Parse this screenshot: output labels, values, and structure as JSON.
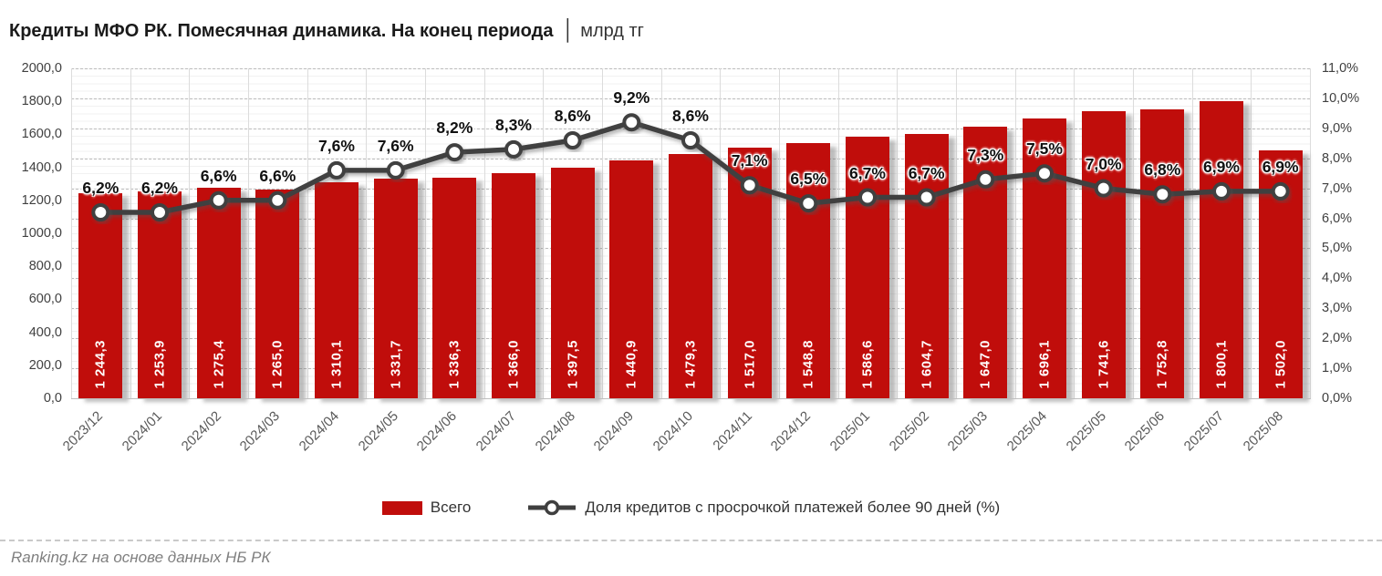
{
  "title": {
    "main": "Кредиты МФО РК. Помесячная динамика. На конец периода",
    "separator": "│",
    "unit": "млрд тг"
  },
  "chart_data": {
    "type": "combo-bar-line",
    "categories": [
      "2023/12",
      "2024/01",
      "2024/02",
      "2024/03",
      "2024/04",
      "2024/05",
      "2024/06",
      "2024/07",
      "2024/08",
      "2024/09",
      "2024/10",
      "2024/11",
      "2024/12",
      "2025/01",
      "2025/02",
      "2025/03",
      "2025/04",
      "2025/05",
      "2025/06",
      "2025/07",
      "2025/08"
    ],
    "series": [
      {
        "name": "Всего",
        "type": "bar",
        "color": "#c00d0b",
        "axis": "left",
        "values": [
          1244.3,
          1253.9,
          1275.4,
          1265.0,
          1310.1,
          1331.7,
          1336.3,
          1366.0,
          1397.5,
          1440.9,
          1479.3,
          1517.0,
          1548.8,
          1586.6,
          1604.7,
          1647.0,
          1696.1,
          1741.6,
          1752.8,
          1800.1,
          1502.0
        ],
        "labels": [
          "1 244,3",
          "1 253,9",
          "1 275,4",
          "1 265,0",
          "1 310,1",
          "1 331,7",
          "1 336,3",
          "1 366,0",
          "1 397,5",
          "1 440,9",
          "1 479,3",
          "1 517,0",
          "1 548,8",
          "1 586,6",
          "1 604,7",
          "1 647,0",
          "1 696,1",
          "1 741,6",
          "1 752,8",
          "1 800,1",
          "1 502,0"
        ]
      },
      {
        "name": "Доля кредитов с просрочкой платежей более 90 дней (%)",
        "type": "line",
        "color": "#3f3f3f",
        "marker_fill": "#ffffff",
        "axis": "right",
        "values": [
          6.2,
          6.2,
          6.6,
          6.6,
          7.6,
          7.6,
          8.2,
          8.3,
          8.6,
          9.2,
          8.6,
          7.1,
          6.5,
          6.7,
          6.7,
          7.3,
          7.5,
          7.0,
          6.8,
          6.9,
          6.9
        ],
        "labels": [
          "6,2%",
          "6,2%",
          "6,6%",
          "6,6%",
          "7,6%",
          "7,6%",
          "8,2%",
          "8,3%",
          "8,6%",
          "9,2%",
          "8,6%",
          "7,1%",
          "6,5%",
          "6,7%",
          "6,7%",
          "7,3%",
          "7,5%",
          "7,0%",
          "6,8%",
          "6,9%",
          "6,9%"
        ]
      }
    ],
    "left_axis": {
      "min": 0,
      "max": 2000,
      "step": 200,
      "tick_labels": [
        "2000,0",
        "1800,0",
        "1600,0",
        "1400,0",
        "1200,0",
        "1000,0",
        "800,0",
        "600,0",
        "400,0",
        "200,0",
        "0,0"
      ]
    },
    "right_axis": {
      "min": 0,
      "max": 11,
      "step": 1,
      "tick_labels": [
        "11,0%",
        "10,0%",
        "9,0%",
        "8,0%",
        "7,0%",
        "6,0%",
        "5,0%",
        "4,0%",
        "3,0%",
        "2,0%",
        "1,0%",
        "0,0%"
      ]
    },
    "grid": {
      "major_dashed": true,
      "minor_light": true,
      "vertical_separators": true
    },
    "legend_position": "bottom-center"
  },
  "footer": {
    "source": "Ranking.kz на основе данных НБ РК"
  }
}
